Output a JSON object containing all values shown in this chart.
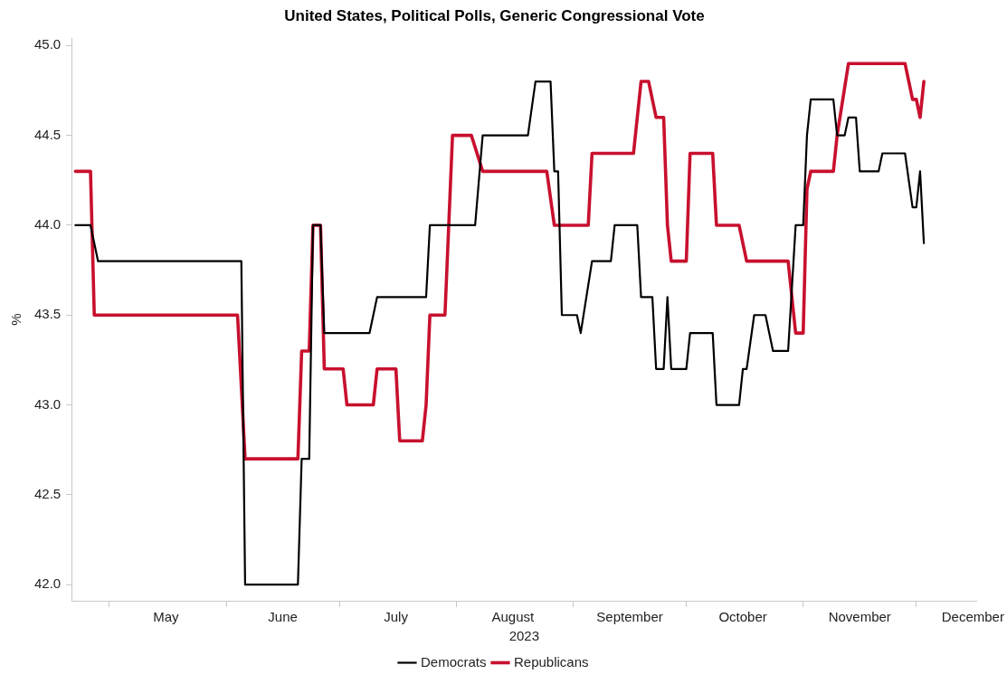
{
  "chart_data": {
    "type": "line",
    "title": "United States, Political Polls, Generic Congressional Vote",
    "xlabel": "2023",
    "ylabel": "%",
    "xlim": [
      "2023-04-21",
      "2023-12-17"
    ],
    "xticks": [
      {
        "value": "2023-05-01",
        "label": null
      },
      {
        "value": "2023-05-16",
        "label": "May"
      },
      {
        "value": "2023-06-01",
        "label": null
      },
      {
        "value": "2023-06-16",
        "label": "June"
      },
      {
        "value": "2023-07-01",
        "label": null
      },
      {
        "value": "2023-07-16",
        "label": "July"
      },
      {
        "value": "2023-08-01",
        "label": null
      },
      {
        "value": "2023-08-16",
        "label": "August"
      },
      {
        "value": "2023-09-01",
        "label": null
      },
      {
        "value": "2023-09-16",
        "label": "September"
      },
      {
        "value": "2023-10-01",
        "label": null
      },
      {
        "value": "2023-10-16",
        "label": "October"
      },
      {
        "value": "2023-11-01",
        "label": null
      },
      {
        "value": "2023-11-16",
        "label": "November"
      },
      {
        "value": "2023-12-01",
        "label": null
      },
      {
        "value": "2023-12-16",
        "label": "December"
      }
    ],
    "ylim": [
      41.91,
      45.04
    ],
    "yticks": [
      {
        "value": 42,
        "label": "42.0"
      },
      {
        "value": 42.5,
        "label": "42.5"
      },
      {
        "value": 43,
        "label": "43.0"
      },
      {
        "value": 43.5,
        "label": "43.5"
      },
      {
        "value": 44,
        "label": "44.0"
      },
      {
        "value": 44.5,
        "label": "44.5"
      },
      {
        "value": 45,
        "label": "45.0"
      }
    ],
    "grid": false,
    "legend": "bottom",
    "marker": "none",
    "line_style": "solid",
    "series": [
      {
        "name": "Democrats",
        "color": "#000000",
        "x": [
          "2023-04-22",
          "2023-04-26",
          "2023-04-28",
          "2023-06-05",
          "2023-06-06",
          "2023-06-20",
          "2023-06-21",
          "2023-06-23",
          "2023-06-24",
          "2023-06-26",
          "2023-06-27",
          "2023-07-09",
          "2023-07-11",
          "2023-07-24",
          "2023-07-25",
          "2023-08-06",
          "2023-08-08",
          "2023-08-20",
          "2023-08-22",
          "2023-08-26",
          "2023-08-27",
          "2023-08-28",
          "2023-08-29",
          "2023-09-02",
          "2023-09-03",
          "2023-09-06",
          "2023-09-11",
          "2023-09-12",
          "2023-09-18",
          "2023-09-19",
          "2023-09-22",
          "2023-09-23",
          "2023-09-25",
          "2023-09-26",
          "2023-09-27",
          "2023-10-01",
          "2023-10-02",
          "2023-10-08",
          "2023-10-09",
          "2023-10-15",
          "2023-10-16",
          "2023-10-17",
          "2023-10-19",
          "2023-10-22",
          "2023-10-24",
          "2023-10-28",
          "2023-10-30",
          "2023-11-01",
          "2023-11-02",
          "2023-11-03",
          "2023-11-09",
          "2023-11-10",
          "2023-11-12",
          "2023-11-13",
          "2023-11-15",
          "2023-11-16",
          "2023-11-21",
          "2023-11-22",
          "2023-11-28",
          "2023-11-30",
          "2023-12-01",
          "2023-12-02",
          "2023-12-03"
        ],
        "values": [
          44.0,
          44.0,
          43.8,
          43.8,
          42.0,
          42.0,
          42.7,
          42.7,
          44.0,
          44.0,
          43.4,
          43.4,
          43.6,
          43.6,
          44.0,
          44.0,
          44.5,
          44.5,
          44.8,
          44.8,
          44.3,
          44.3,
          43.5,
          43.5,
          43.4,
          43.8,
          43.8,
          44.0,
          44.0,
          43.6,
          43.6,
          43.2,
          43.2,
          43.6,
          43.2,
          43.2,
          43.4,
          43.4,
          43.0,
          43.0,
          43.2,
          43.2,
          43.5,
          43.5,
          43.3,
          43.3,
          44.0,
          44.0,
          44.5,
          44.7,
          44.7,
          44.5,
          44.5,
          44.6,
          44.6,
          44.3,
          44.3,
          44.4,
          44.4,
          44.1,
          44.1,
          44.3,
          43.9
        ]
      },
      {
        "name": "Republicans",
        "color": "#c8102e",
        "x": [
          "2023-04-22",
          "2023-04-26",
          "2023-04-27",
          "2023-06-04",
          "2023-06-06",
          "2023-06-20",
          "2023-06-21",
          "2023-06-23",
          "2023-06-24",
          "2023-06-26",
          "2023-06-27",
          "2023-07-02",
          "2023-07-03",
          "2023-07-10",
          "2023-07-11",
          "2023-07-16",
          "2023-07-17",
          "2023-07-23",
          "2023-07-24",
          "2023-07-25",
          "2023-07-29",
          "2023-07-31",
          "2023-08-05",
          "2023-08-08",
          "2023-08-25",
          "2023-08-27",
          "2023-09-05",
          "2023-09-06",
          "2023-09-17",
          "2023-09-19",
          "2023-09-21",
          "2023-09-23",
          "2023-09-25",
          "2023-09-26",
          "2023-09-27",
          "2023-10-01",
          "2023-10-02",
          "2023-10-08",
          "2023-10-09",
          "2023-10-15",
          "2023-10-17",
          "2023-10-28",
          "2023-10-30",
          "2023-11-01",
          "2023-11-02",
          "2023-11-03",
          "2023-11-09",
          "2023-11-10",
          "2023-11-13",
          "2023-11-28",
          "2023-11-30",
          "2023-12-01",
          "2023-12-02",
          "2023-12-03"
        ],
        "values": [
          44.3,
          44.3,
          43.5,
          43.5,
          42.7,
          42.7,
          43.3,
          43.3,
          44.0,
          44.0,
          43.2,
          43.2,
          43.0,
          43.0,
          43.2,
          43.2,
          42.8,
          42.8,
          43.0,
          43.5,
          43.5,
          44.5,
          44.5,
          44.3,
          44.3,
          44.0,
          44.0,
          44.4,
          44.4,
          44.8,
          44.8,
          44.6,
          44.6,
          44.0,
          43.8,
          43.8,
          44.4,
          44.4,
          44.0,
          44.0,
          43.8,
          43.8,
          43.4,
          43.4,
          44.2,
          44.3,
          44.3,
          44.5,
          44.9,
          44.9,
          44.7,
          44.7,
          44.6,
          44.8
        ]
      }
    ]
  }
}
